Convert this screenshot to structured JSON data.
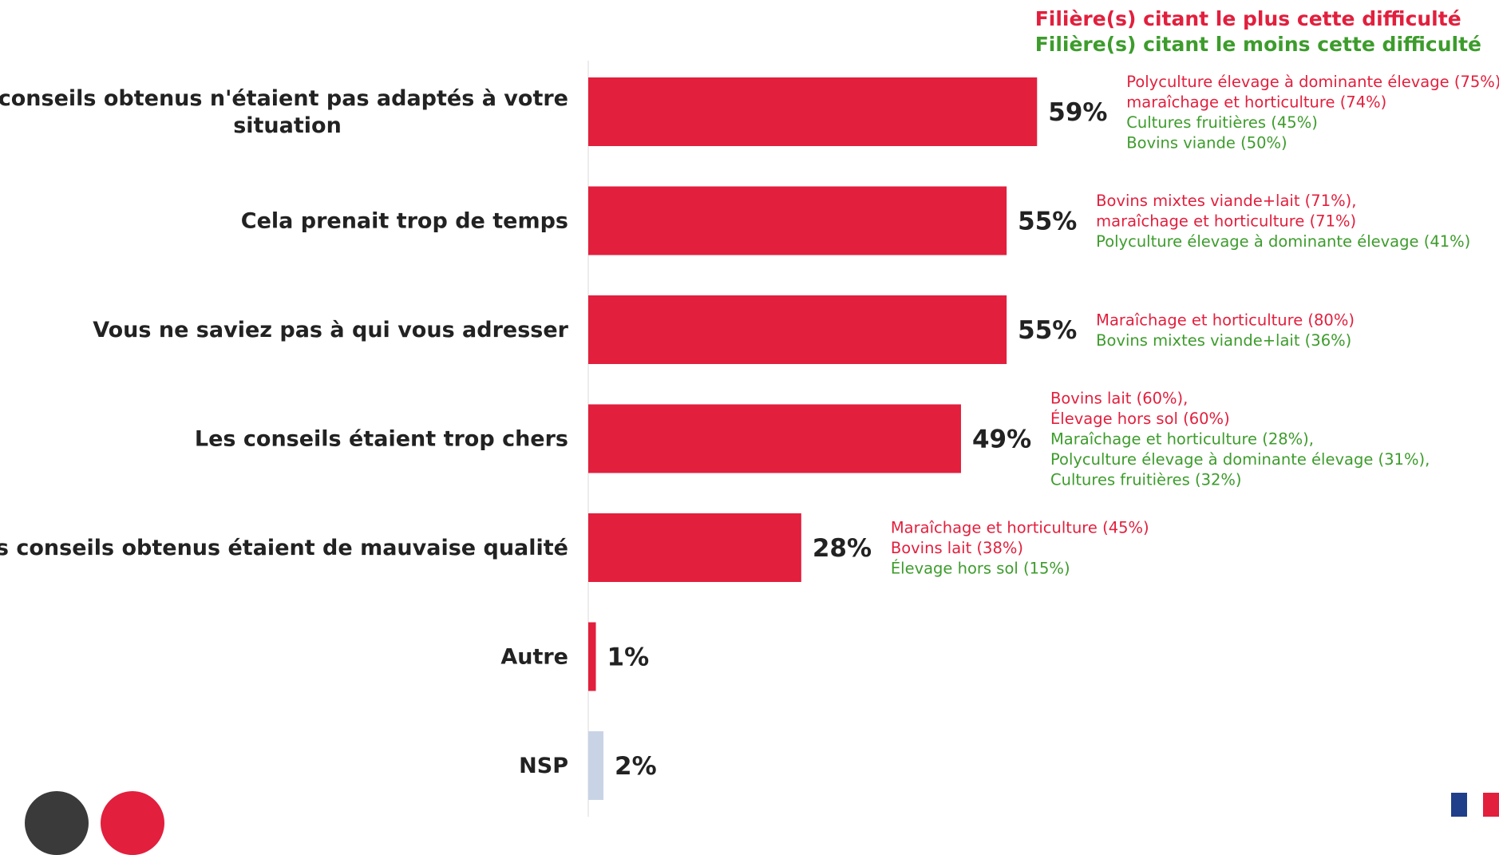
{
  "legend": {
    "most_label": "Filière(s) citant le plus cette difficulté",
    "least_label": "Filière(s) citant le moins cette difficulté",
    "most_color": "#e21f3d",
    "least_color": "#3d9c2c"
  },
  "chart_data": {
    "type": "bar",
    "orientation": "horizontal",
    "title": "",
    "xlabel": "",
    "ylabel": "",
    "xlim": [
      0,
      100
    ],
    "bar_color": "#e21f3d",
    "nsp_color": "#c9d3e6",
    "categories": [
      {
        "label_lines": [
          "Les conseils obtenus n'étaient pas adaptés à votre",
          "situation"
        ],
        "value": 59,
        "value_label": "59%",
        "most": [
          "Polyculture élevage à dominante élevage (75%),",
          "maraîchage et horticulture (74%)"
        ],
        "least": [
          "Cultures fruitières (45%)",
          "Bovins viande (50%)"
        ]
      },
      {
        "label_lines": [
          "Cela prenait trop de temps"
        ],
        "value": 55,
        "value_label": "55%",
        "most": [
          "Bovins mixtes viande+lait (71%),",
          "maraîchage et horticulture (71%)"
        ],
        "least": [
          "Polyculture élevage à dominante élevage (41%)"
        ]
      },
      {
        "label_lines": [
          "Vous ne saviez pas à qui vous adresser"
        ],
        "value": 55,
        "value_label": "55%",
        "most": [
          "Maraîchage et horticulture (80%)"
        ],
        "least": [
          "Bovins mixtes viande+lait (36%)"
        ]
      },
      {
        "label_lines": [
          "Les conseils étaient trop chers"
        ],
        "value": 49,
        "value_label": "49%",
        "most": [
          "Bovins lait (60%),",
          "Élevage hors sol (60%)"
        ],
        "least": [
          "Maraîchage et horticulture (28%),",
          "Polyculture élevage à dominante élevage (31%),",
          "Cultures fruitières (32%)"
        ]
      },
      {
        "label_lines": [
          "Les conseils obtenus étaient de mauvaise qualité"
        ],
        "value": 28,
        "value_label": "28%",
        "most": [
          "Maraîchage et horticulture (45%)",
          "Bovins lait (38%)"
        ],
        "least": [
          "Élevage hors sol (15%)"
        ]
      },
      {
        "label_lines": [
          "Autre"
        ],
        "value": 1,
        "value_label": "1%",
        "most": [],
        "least": []
      },
      {
        "label_lines": [
          "NSP"
        ],
        "value": 2,
        "value_label": "2%",
        "nsp": true,
        "most": [],
        "least": []
      }
    ]
  }
}
